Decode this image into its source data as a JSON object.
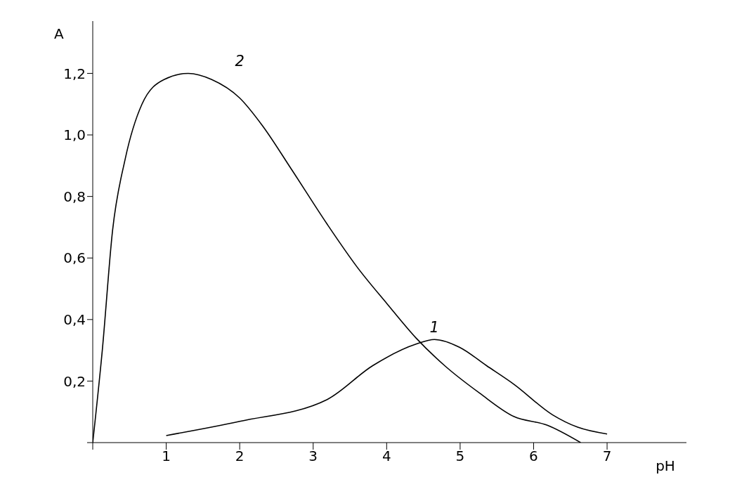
{
  "chart_data": {
    "type": "line",
    "xlabel": "pH",
    "ylabel": "A",
    "xlim": [
      0,
      8.08
    ],
    "ylim": [
      0,
      1.37
    ],
    "xticks": [
      {
        "value": 0,
        "label": null
      },
      1,
      2,
      3,
      4,
      5,
      6,
      7
    ],
    "yticks": [
      {
        "value": 0,
        "label": null
      },
      {
        "value": 0.2,
        "label": "0,2"
      },
      {
        "value": 0.4,
        "label": "0,4"
      },
      {
        "value": 0.6,
        "label": "0,6"
      },
      {
        "value": 0.8,
        "label": "0,8"
      },
      {
        "value": 1.0,
        "label": "1,0"
      },
      {
        "value": 1.2,
        "label": "1,2"
      }
    ],
    "grid": false,
    "marker": "none",
    "line_style": "solid",
    "series": [
      {
        "name": "1",
        "color": "#000000",
        "x": [
          1,
          2,
          3.19,
          3.81,
          4.4,
          4.65,
          4.99,
          5.36,
          5.73,
          6.26,
          6.6,
          7
        ],
        "values": [
          0.023,
          0.069,
          0.14,
          0.25,
          0.32,
          0.335,
          0.31,
          0.25,
          0.19,
          0.09,
          0.05,
          0.028
        ]
      },
      {
        "name": "2",
        "color": "#000000",
        "x": [
          0,
          0.13,
          0.27,
          0.44,
          0.67,
          0.97,
          1.3,
          1.62,
          2.0,
          2.31,
          2.7,
          3.19,
          3.6,
          4.01,
          4.4,
          4.79,
          5.27,
          5.73,
          6.18,
          6.64
        ],
        "values": [
          0,
          0.3,
          0.69,
          0.92,
          1.1,
          1.18,
          1.2,
          1.18,
          1.12,
          1.03,
          0.89,
          0.71,
          0.57,
          0.45,
          0.34,
          0.25,
          0.16,
          0.085,
          0.057,
          0
        ]
      }
    ]
  }
}
